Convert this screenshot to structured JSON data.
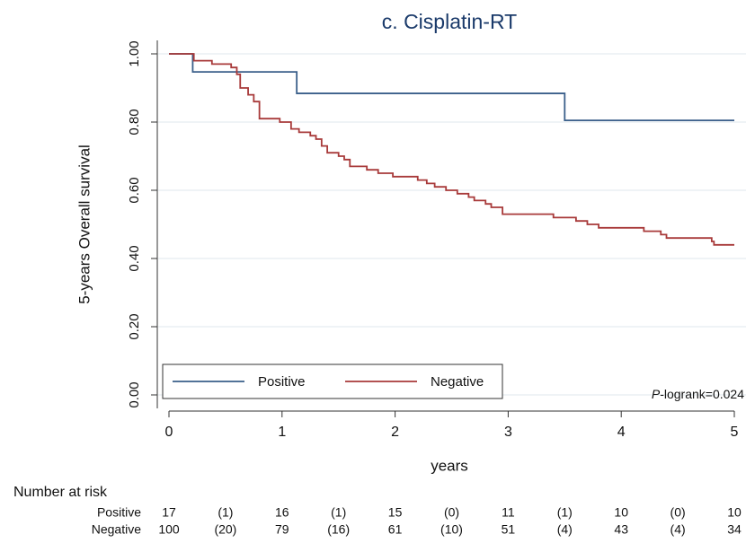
{
  "chart_data": {
    "type": "step",
    "title": "c. Cisplatin-RT",
    "x_label": "years",
    "y_label": "5-years Overall survival",
    "xlim": [
      0,
      5
    ],
    "xticks": [
      0,
      1,
      2,
      3,
      4,
      5
    ],
    "ylim": [
      0,
      1
    ],
    "yticks": [
      {
        "value": 0,
        "label": "0.00"
      },
      {
        "value": 0.2,
        "label": "0.20"
      },
      {
        "value": 0.4,
        "label": "0.40"
      },
      {
        "value": 0.6,
        "label": "0.60"
      },
      {
        "value": 0.8,
        "label": "0.80"
      },
      {
        "value": 1,
        "label": "1.00"
      }
    ],
    "grid": true,
    "legend": "bottom-left",
    "annotation": {
      "italic": "P",
      "text": "-logrank=0.024"
    },
    "series": [
      {
        "name": "Positive",
        "color": "#3a5f8a",
        "x": [
          0,
          0.21,
          1.13,
          3.5,
          5
        ],
        "values": [
          1.0,
          0.947,
          0.884,
          0.805,
          0.805
        ]
      },
      {
        "name": "Negative",
        "color": "#a83a3a",
        "x": [
          0,
          0.22,
          0.38,
          0.55,
          0.6,
          0.63,
          0.7,
          0.75,
          0.8,
          0.98,
          1.08,
          1.15,
          1.25,
          1.3,
          1.35,
          1.4,
          1.5,
          1.55,
          1.6,
          1.75,
          1.85,
          1.98,
          2.2,
          2.28,
          2.35,
          2.45,
          2.55,
          2.65,
          2.7,
          2.8,
          2.85,
          2.95,
          3.4,
          3.6,
          3.7,
          3.8,
          4.2,
          4.35,
          4.4,
          4.8,
          4.82,
          5
        ],
        "values": [
          1.0,
          0.98,
          0.97,
          0.96,
          0.94,
          0.9,
          0.88,
          0.86,
          0.81,
          0.8,
          0.78,
          0.77,
          0.76,
          0.75,
          0.73,
          0.71,
          0.7,
          0.69,
          0.67,
          0.66,
          0.65,
          0.64,
          0.63,
          0.62,
          0.61,
          0.6,
          0.59,
          0.58,
          0.57,
          0.56,
          0.55,
          0.53,
          0.52,
          0.51,
          0.5,
          0.49,
          0.48,
          0.47,
          0.46,
          0.45,
          0.44,
          0.44
        ]
      }
    ]
  },
  "risk_table": {
    "title": "Number at risk",
    "rows": [
      {
        "name": "Positive",
        "cells": [
          "17",
          "(1)",
          "16",
          "(1)",
          "15",
          "(0)",
          "11",
          "(1)",
          "10",
          "(0)",
          "10"
        ]
      },
      {
        "name": "Negative",
        "cells": [
          "100",
          "(20)",
          "79",
          "(16)",
          "61",
          "(10)",
          "51",
          "(4)",
          "43",
          "(4)",
          "34"
        ]
      }
    ]
  }
}
